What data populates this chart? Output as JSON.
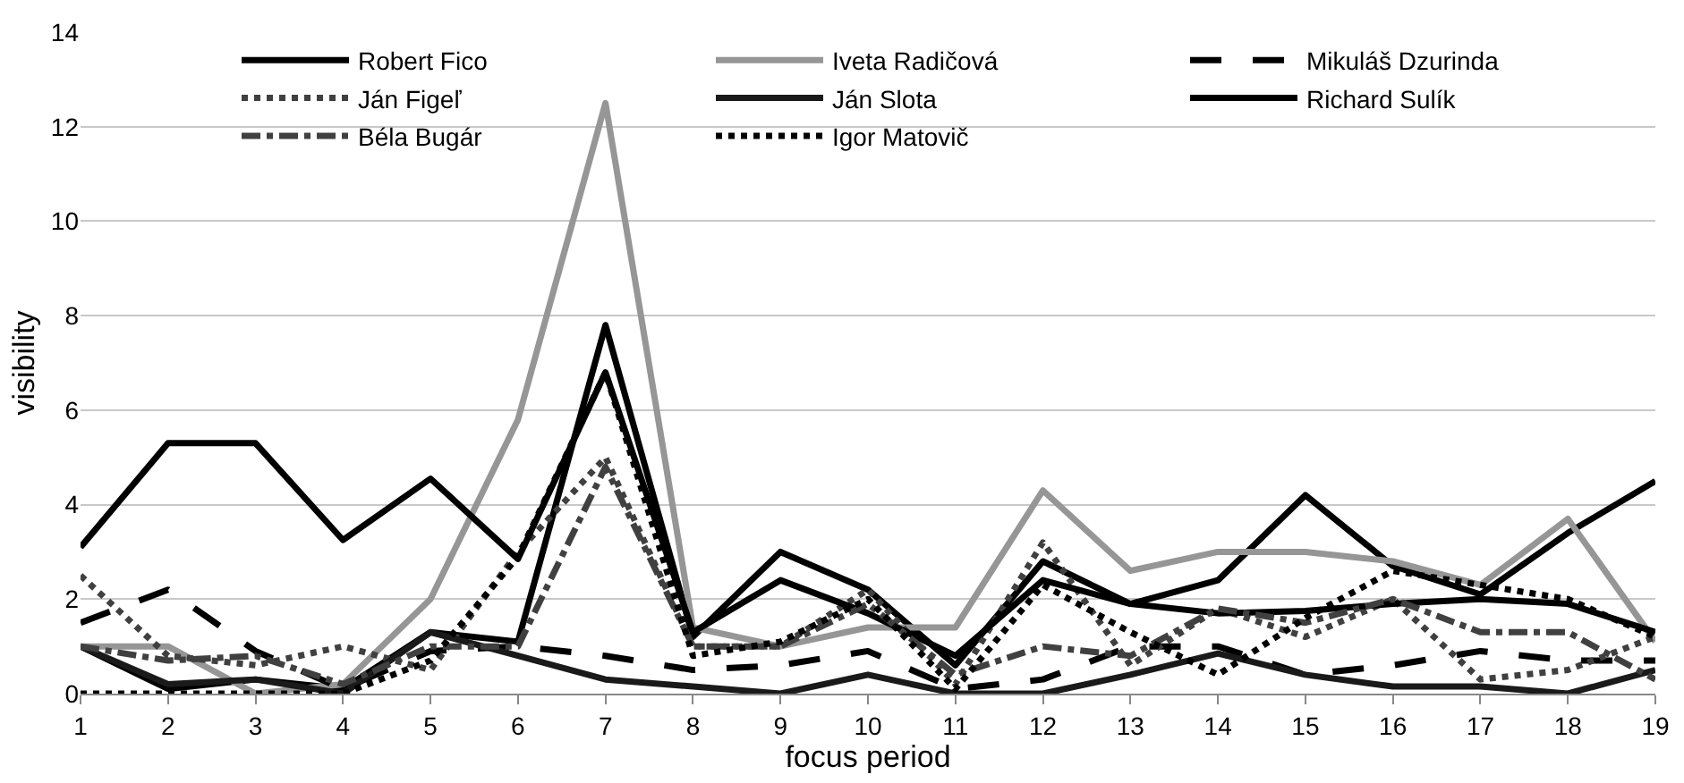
{
  "chart_data": {
    "type": "line",
    "xlabel": "focus period",
    "ylabel": "visibility",
    "x": [
      1,
      2,
      3,
      4,
      5,
      6,
      7,
      8,
      9,
      10,
      11,
      12,
      13,
      14,
      15,
      16,
      17,
      18,
      19
    ],
    "xlim": [
      1,
      19
    ],
    "xticks": [
      1,
      2,
      3,
      4,
      5,
      6,
      7,
      8,
      9,
      10,
      11,
      12,
      13,
      14,
      15,
      16,
      17,
      18,
      19
    ],
    "ylim": [
      0,
      14
    ],
    "yticks": [
      0,
      2,
      4,
      6,
      8,
      10,
      12,
      14
    ],
    "grid": "y",
    "legend": "top right",
    "marker": "none",
    "series": [
      {
        "name": "Robert Fico",
        "color": "#000000",
        "line_style": "solid",
        "values": [
          1.0,
          0.1,
          0.3,
          0.1,
          1.3,
          1.1,
          7.8,
          1.2,
          3.0,
          2.2,
          0.6,
          2.8,
          1.9,
          2.4,
          4.2,
          2.7,
          2.1,
          3.4,
          4.5
        ]
      },
      {
        "name": "Iveta Radičová",
        "color": "#969696",
        "line_style": "solid",
        "values": [
          1.0,
          1.0,
          0.0,
          0.2,
          2.0,
          5.8,
          12.5,
          1.4,
          1.0,
          1.4,
          1.4,
          4.3,
          2.6,
          3.0,
          3.0,
          2.8,
          2.3,
          3.7,
          1.1
        ]
      },
      {
        "name": "Mikuláš Dzurinda",
        "color": "#000000",
        "line_style": "dashed",
        "values": [
          1.5,
          2.2,
          0.9,
          0.1,
          0.9,
          1.0,
          0.8,
          0.5,
          0.6,
          0.9,
          0.1,
          0.3,
          1.0,
          1.0,
          0.4,
          0.6,
          0.9,
          0.7,
          0.7
        ]
      },
      {
        "name": "Ján Figeľ",
        "color": "#404040",
        "line_style": "dotted",
        "values": [
          2.5,
          0.8,
          0.6,
          1.0,
          0.5,
          3.0,
          5.0,
          1.0,
          1.0,
          2.2,
          0.2,
          3.2,
          0.6,
          1.8,
          1.2,
          2.0,
          0.3,
          0.5,
          1.2
        ]
      },
      {
        "name": "Ján Slota",
        "color": "#1a1a1a",
        "line_style": "solid",
        "values": [
          1.0,
          0.2,
          0.3,
          0.0,
          1.3,
          0.8,
          0.3,
          0.15,
          0.0,
          0.4,
          0.0,
          0.0,
          0.4,
          0.85,
          0.4,
          0.15,
          0.15,
          0.0,
          0.5
        ]
      },
      {
        "name": "Richard Sulík",
        "color": "#000000",
        "line_style": "solid",
        "values": [
          3.1,
          5.3,
          5.3,
          3.25,
          4.55,
          2.85,
          6.8,
          1.3,
          2.4,
          1.7,
          0.8,
          2.4,
          1.9,
          1.7,
          1.75,
          1.9,
          2.0,
          1.9,
          1.3
        ]
      },
      {
        "name": "Béla Bugár",
        "color": "#404040",
        "line_style": "dashdot",
        "values": [
          1.0,
          0.7,
          0.8,
          0.2,
          1.0,
          1.0,
          4.8,
          1.0,
          1.0,
          1.9,
          0.4,
          1.0,
          0.8,
          1.8,
          1.5,
          2.0,
          1.3,
          1.3,
          0.3
        ]
      },
      {
        "name": "Igor Matovič",
        "color": "#000000",
        "line_style": "dotted",
        "values": [
          0.0,
          0.0,
          0.0,
          0.0,
          0.7,
          2.9,
          6.8,
          0.8,
          1.1,
          2.0,
          0.1,
          2.3,
          1.3,
          0.4,
          1.6,
          2.6,
          2.3,
          2.0,
          1.2
        ]
      }
    ]
  }
}
